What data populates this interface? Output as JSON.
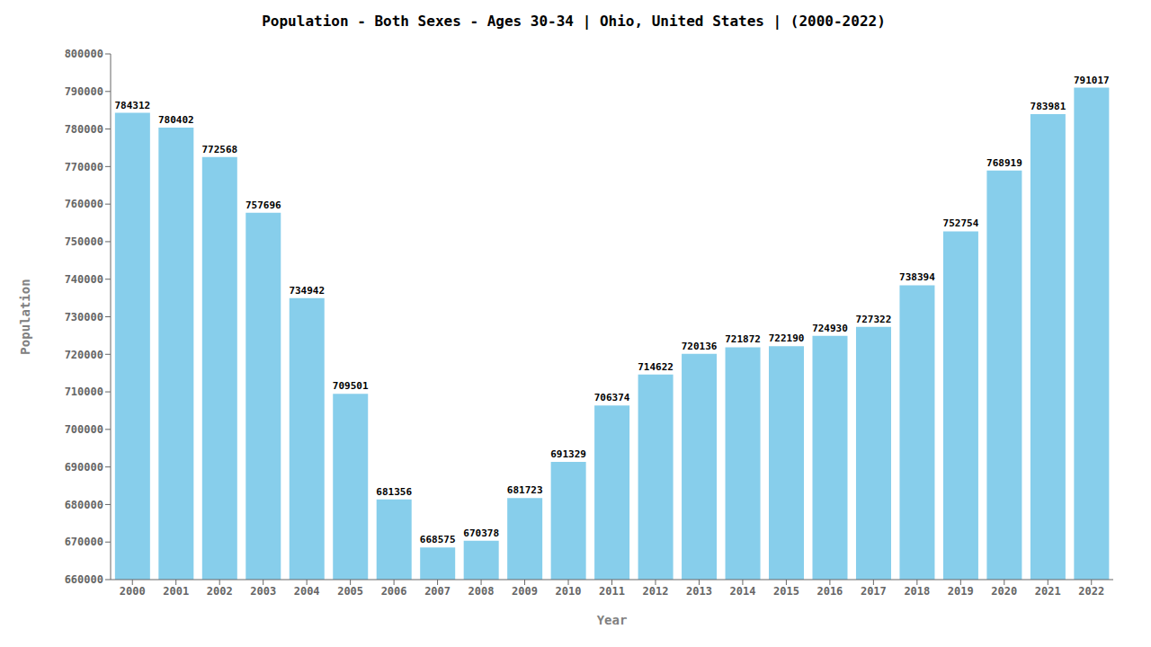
{
  "chart_data": {
    "type": "bar",
    "title": "Population - Both Sexes - Ages 30-34 | Ohio, United States |  (2000-2022)",
    "x_label": "Year",
    "y_label": "Population",
    "categories": [
      "2000",
      "2001",
      "2002",
      "2003",
      "2004",
      "2005",
      "2006",
      "2007",
      "2008",
      "2009",
      "2010",
      "2011",
      "2012",
      "2013",
      "2014",
      "2015",
      "2016",
      "2017",
      "2018",
      "2019",
      "2020",
      "2021",
      "2022"
    ],
    "values": [
      784312,
      780402,
      772568,
      757696,
      734942,
      709501,
      681356,
      668575,
      670378,
      681723,
      691329,
      706374,
      714622,
      720136,
      721872,
      722190,
      724930,
      727322,
      738394,
      752754,
      768919,
      783981,
      791017
    ],
    "color": "#87CEEB",
    "ylim": [
      660000,
      800000
    ],
    "yticks": [
      660000,
      670000,
      680000,
      690000,
      700000,
      710000,
      720000,
      730000,
      740000,
      750000,
      760000,
      770000,
      780000,
      790000,
      800000
    ],
    "grid": false,
    "data_labels": true
  }
}
